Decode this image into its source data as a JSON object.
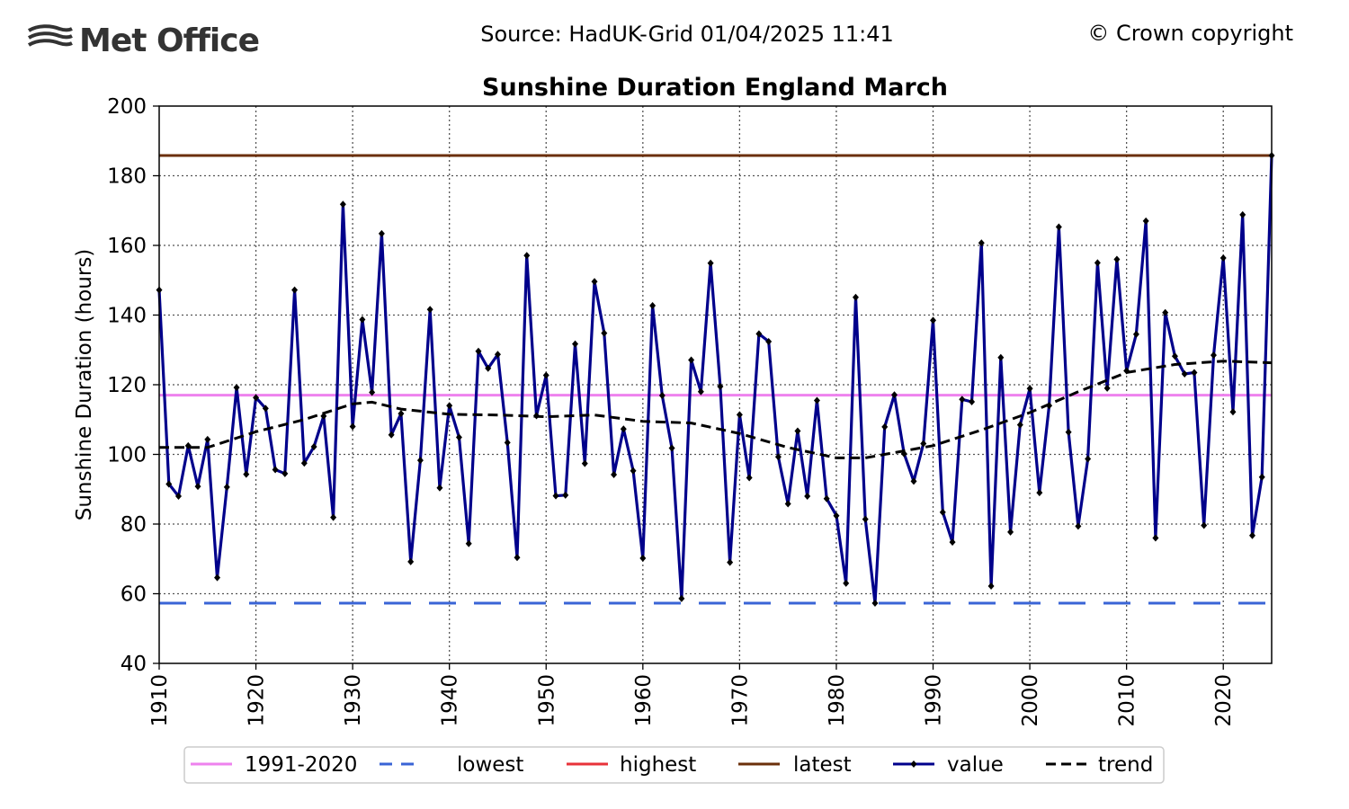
{
  "header": {
    "logo_text": "Met Office",
    "source": "Source: HadUK-Grid 01/04/2025 11:41",
    "copyright": "© Crown copyright"
  },
  "colors": {
    "avg": "#ee82ee",
    "lowest": "#3a64d6",
    "highest": "#e8323a",
    "latest": "#6b2f0a",
    "value": "#00008b",
    "trend": "#000000",
    "logo": "#333333"
  },
  "chart_data": {
    "type": "line",
    "title": "Sunshine Duration England March",
    "xlabel": "",
    "ylabel": "Sunshine Duration (hours)",
    "xlim": [
      1910,
      2025
    ],
    "ylim": [
      40,
      200
    ],
    "x_ticks": [
      1910,
      1920,
      1930,
      1940,
      1950,
      1960,
      1970,
      1980,
      1990,
      2000,
      2010,
      2020
    ],
    "y_ticks": [
      40,
      60,
      80,
      100,
      120,
      140,
      160,
      180,
      200
    ],
    "grid": true,
    "legend_position": "bottom",
    "reference_lines": [
      {
        "name": "1991-2020",
        "value": 117.0
      },
      {
        "name": "lowest",
        "value": 57.3
      },
      {
        "name": "highest",
        "value": 185.8
      },
      {
        "name": "latest",
        "value": 185.8
      }
    ],
    "series": [
      {
        "name": "value",
        "x": [
          1910,
          1911,
          1912,
          1913,
          1914,
          1915,
          1916,
          1917,
          1918,
          1919,
          1920,
          1921,
          1922,
          1923,
          1924,
          1925,
          1926,
          1927,
          1928,
          1929,
          1930,
          1931,
          1932,
          1933,
          1934,
          1935,
          1936,
          1937,
          1938,
          1939,
          1940,
          1941,
          1942,
          1943,
          1944,
          1945,
          1946,
          1947,
          1948,
          1949,
          1950,
          1951,
          1952,
          1953,
          1954,
          1955,
          1956,
          1957,
          1958,
          1959,
          1960,
          1961,
          1962,
          1963,
          1964,
          1965,
          1966,
          1967,
          1968,
          1969,
          1970,
          1971,
          1972,
          1973,
          1974,
          1975,
          1976,
          1977,
          1978,
          1979,
          1980,
          1981,
          1982,
          1983,
          1984,
          1985,
          1986,
          1987,
          1988,
          1989,
          1990,
          1991,
          1992,
          1993,
          1994,
          1995,
          1996,
          1997,
          1998,
          1999,
          2000,
          2001,
          2002,
          2003,
          2004,
          2005,
          2006,
          2007,
          2008,
          2009,
          2010,
          2011,
          2012,
          2013,
          2014,
          2015,
          2016,
          2017,
          2018,
          2019,
          2020,
          2021,
          2022,
          2023,
          2024,
          2025
        ],
        "values": [
          147.2,
          91.5,
          88.0,
          102.5,
          90.8,
          104.3,
          64.6,
          90.6,
          119.2,
          94.3,
          116.3,
          113.2,
          95.6,
          94.5,
          147.2,
          97.5,
          102.2,
          111.0,
          81.9,
          171.8,
          108.0,
          138.7,
          117.8,
          163.4,
          105.6,
          111.7,
          69.2,
          98.3,
          141.6,
          90.4,
          114.0,
          104.9,
          74.4,
          129.6,
          124.7,
          128.7,
          103.4,
          70.4,
          157.1,
          111.1,
          122.7,
          88.1,
          88.3,
          131.7,
          97.4,
          149.6,
          134.8,
          94.2,
          107.3,
          95.3,
          70.2,
          142.7,
          116.9,
          101.8,
          58.6,
          127.1,
          118.0,
          154.9,
          119.5,
          69.0,
          111.4,
          93.3,
          134.6,
          132.4,
          99.3,
          85.8,
          106.7,
          88.0,
          115.5,
          87.3,
          82.4,
          63.0,
          145.1,
          81.4,
          57.3,
          107.9,
          117.1,
          100.2,
          92.3,
          103.1,
          138.5,
          83.4,
          74.8,
          115.8,
          115.1,
          160.7,
          62.2,
          127.8,
          77.7,
          108.5,
          118.9,
          89.0,
          114.0,
          165.3,
          106.4,
          79.4,
          98.7,
          155.0,
          119.0,
          156.0,
          124.0,
          134.5,
          167.0,
          76.0,
          140.7,
          128.2,
          123.1,
          123.5,
          79.6,
          128.5,
          156.4,
          112.2,
          168.8,
          76.7,
          93.5,
          185.8
        ]
      },
      {
        "name": "trend",
        "x": [
          1910,
          1915,
          1920,
          1925,
          1930,
          1932,
          1935,
          1940,
          1945,
          1950,
          1955,
          1960,
          1965,
          1970,
          1975,
          1980,
          1983,
          1985,
          1990,
          1995,
          2000,
          2005,
          2010,
          2015,
          2020,
          2025
        ],
        "values": [
          102,
          102,
          106.5,
          110,
          114.5,
          115,
          113,
          111.5,
          111.3,
          110.8,
          111.3,
          109.5,
          109,
          106,
          102,
          99,
          99,
          100,
          102.5,
          107,
          112,
          118,
          123.5,
          125.8,
          126.8,
          126.3
        ]
      }
    ]
  }
}
